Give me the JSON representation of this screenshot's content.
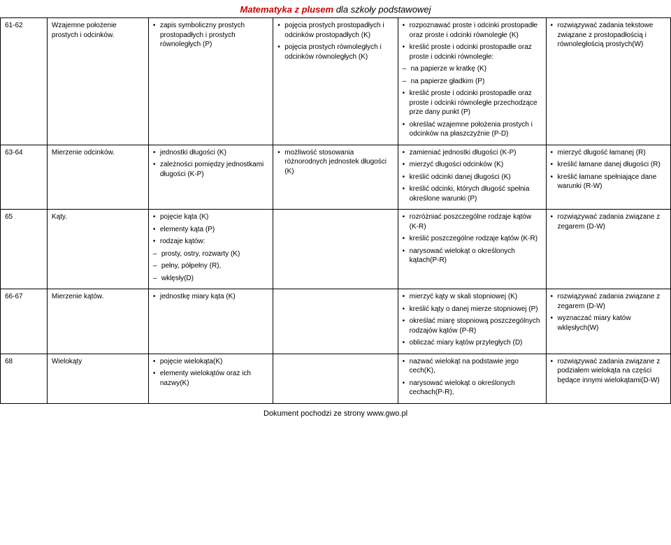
{
  "header": {
    "red": "Matematyka z plusem",
    "rest": " dla szkoły podstawowej"
  },
  "footer": "Dokument pochodzi ze strony www.gwo.pl",
  "rows": [
    {
      "num": "61-62",
      "topic": "Wzajemne położenie prostych i odcinków.",
      "c2": {
        "b": [
          "zapis symboliczny prostych prostopadłych i prostych równoległych (P)"
        ]
      },
      "c3": {
        "b": [
          "pojęcia prostych prostopadłych i odcinków prostopadłych (K)",
          "pojęcia prostych równoległych i odcinków równoległych (K)"
        ]
      },
      "c4": {
        "b": [
          "rozpoznawać proste i odcinki prostopadłe oraz proste i odcinki równoległe (K)",
          "kreślić proste i odcinki prostopadłe oraz proste i odcinki równoległe:"
        ],
        "d": [
          "na papierze w kratkę (K)",
          "na papierze gładkim (P)"
        ],
        "b2": [
          "kreślić proste i odcinki prostopadłe oraz proste i odcinki równoległe przechodzące prze dany punkt (P)",
          "określać wzajemne położenia prostych i odcinków na płaszczyźnie (P-D)"
        ]
      },
      "c5": {
        "b": [
          "rozwiązywać zadania tekstowe związane z prostopadłością i równoległością prostych(W)"
        ]
      }
    },
    {
      "num": "63-64",
      "topic": "Mierzenie odcinków.",
      "c2": {
        "b": [
          "jednostki długości (K)",
          "zależności pomiędzy jednostkami długości (K-P)"
        ]
      },
      "c3": {
        "b": [
          "możliwość stosowania różnorodnych jednostek długości (K)"
        ]
      },
      "c4": {
        "b": [
          "zamieniać jednostki długości (K-P)",
          "mierzyć długości odcinków (K)",
          "kreślić odcinki danej długości (K)",
          "kreślić odcinki, których długość spełnia określone warunki (P)"
        ],
        "nobullet_last": true
      },
      "c5": {
        "b": [
          "mierzyć długość łamanej (R)",
          "kreślić łamane danej długości (R)",
          "kreślić łamane spełniające dane warunki (R-W)"
        ]
      }
    },
    {
      "num": "65",
      "topic": "Kąty.",
      "c2": {
        "b": [
          "pojęcie kąta (K)",
          "elementy kąta (P)",
          "rodzaje kątów:"
        ],
        "d": [
          "prosty, ostry, rozwarty (K)",
          "pełny, półpełny (R),",
          "wklęsły(D)"
        ]
      },
      "c3": {},
      "c4": {
        "b": [
          "rozróżniać poszczególne rodzaje kątów (K-R)",
          "kreślić poszczególne rodzaje kątów (K-R)",
          "narysować wielokąt o określonych kątach(P-R)"
        ]
      },
      "c5": {
        "b": [
          "rozwiązywać zadania związane z zegarem (D-W)"
        ]
      }
    },
    {
      "num": "66-67",
      "topic": "Mierzenie kątów.",
      "c2": {
        "b": [
          "jednostkę miary kąta (K)"
        ]
      },
      "c3": {},
      "c4": {
        "b": [
          "mierzyć kąty w skali stopniowej (K)",
          "kreślić kąty o danej mierze stopniowej (P)",
          "określać miarę stopniową poszczególnych rodzajów kątów (P-R)",
          "obliczać miary kątów przyległych (D)"
        ]
      },
      "c5": {
        "b": [
          "rozwiązywać zadania związane z zegarem (D-W)",
          "wyznaczać miary katów wklęsłych(W)"
        ]
      }
    },
    {
      "num": "68",
      "topic": "Wielokąty",
      "c2": {
        "b": [
          "pojęcie wielokąta(K)",
          "elementy wielokątów oraz ich nazwy(K)"
        ]
      },
      "c3": {},
      "c4": {
        "b": [
          "nazwać wielokąt na podstawie jego cech(K),",
          "narysować wielokąt o określonych cechach(P-R),"
        ]
      },
      "c5": {
        "b": [
          "rozwiązywać zadania związane z podziałem wielokąta na części będące innymi wielokątami(D-W)"
        ]
      }
    }
  ]
}
